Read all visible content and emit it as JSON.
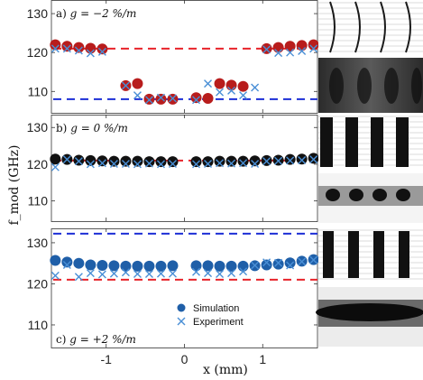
{
  "chart_data": {
    "type": "scatter",
    "ylabel": "f_mod (GHz)",
    "xlabel": "x (mm)",
    "xlim": [
      -1.7,
      1.7
    ],
    "xticks": [
      -1,
      0,
      1
    ],
    "xtick_labels": [
      "-1",
      "0",
      "1"
    ],
    "legend": {
      "placement": "bottom-center of panel c",
      "entries": [
        {
          "label": "Simulation",
          "marker": "circle"
        },
        {
          "label": "Experiment",
          "marker": "x"
        }
      ]
    },
    "panels": [
      {
        "label_prefix": "a)",
        "label_eq": "g = −2 %/m",
        "ylim": [
          104.5,
          133.5
        ],
        "yticks": [
          110,
          120,
          130
        ],
        "marker_color": "#b81c1c",
        "reference_lines": [
          {
            "value": 121,
            "color": "#e8232a"
          },
          {
            "value": 108,
            "color": "#1d2fd6"
          }
        ],
        "simulation": {
          "x": [
            -1.65,
            -1.5,
            -1.35,
            -1.2,
            -1.05,
            -0.75,
            -0.6,
            -0.45,
            -0.3,
            -0.15,
            0.15,
            0.3,
            0.45,
            0.6,
            0.75,
            1.05,
            1.2,
            1.35,
            1.5,
            1.65
          ],
          "y": [
            122,
            121.6,
            121.3,
            121.1,
            120.9,
            111.5,
            112,
            108,
            108,
            108,
            108.4,
            108.2,
            112,
            111.6,
            111.3,
            121,
            121.3,
            121.6,
            121.8,
            122
          ]
        },
        "experiment": {
          "x": [
            -1.65,
            -1.5,
            -1.35,
            -1.2,
            -1.05,
            -0.75,
            -0.6,
            -0.45,
            -0.3,
            -0.15,
            0.15,
            0.3,
            0.45,
            0.6,
            0.75,
            0.9,
            1.05,
            1.2,
            1.35,
            1.5,
            1.65
          ],
          "y": [
            121,
            121,
            120.5,
            119.8,
            120.2,
            111.5,
            109,
            107.8,
            108.4,
            108.2,
            107.8,
            112,
            109.8,
            110.2,
            109,
            111,
            120.8,
            119.9,
            120,
            120.4,
            121
          ]
        }
      },
      {
        "label_prefix": "b)",
        "label_eq": "g = 0 %/m",
        "ylim": [
          104.5,
          133.5
        ],
        "yticks": [
          110,
          120,
          130
        ],
        "marker_color": "#111111",
        "reference_lines": [
          {
            "value": 121,
            "color": "#e8232a"
          }
        ],
        "simulation": {
          "x": [
            -1.65,
            -1.5,
            -1.35,
            -1.2,
            -1.05,
            -0.9,
            -0.75,
            -0.6,
            -0.45,
            -0.3,
            -0.15,
            0.15,
            0.3,
            0.45,
            0.6,
            0.75,
            0.9,
            1.05,
            1.2,
            1.35,
            1.5,
            1.65
          ],
          "y": [
            121.4,
            121.3,
            121.1,
            121,
            120.9,
            120.8,
            120.8,
            120.8,
            120.7,
            120.7,
            120.7,
            120.7,
            120.7,
            120.8,
            120.8,
            120.8,
            120.9,
            121,
            121.1,
            121.3,
            121.4,
            121.6
          ]
        },
        "experiment": {
          "x": [
            -1.65,
            -1.5,
            -1.35,
            -1.2,
            -1.05,
            -0.9,
            -0.75,
            -0.6,
            -0.45,
            -0.3,
            -0.15,
            0.15,
            0.3,
            0.45,
            0.6,
            0.75,
            0.9,
            1.05,
            1.2,
            1.35,
            1.5,
            1.65
          ],
          "y": [
            119.2,
            121.3,
            120.8,
            120,
            120.3,
            120.1,
            120.1,
            120,
            120.2,
            120,
            120.1,
            120,
            120.1,
            120.3,
            120.2,
            120.3,
            120.1,
            120.8,
            120.9,
            121,
            121.1,
            121.3
          ]
        }
      },
      {
        "label_prefix": "c)",
        "label_eq": "g = +2 %/m",
        "ylim": [
          104.5,
          133.5
        ],
        "yticks": [
          110,
          120,
          130
        ],
        "marker_color": "#1f5fa8",
        "reference_lines": [
          {
            "value": 132.2,
            "color": "#1d2fd6"
          },
          {
            "value": 121,
            "color": "#e8232a"
          }
        ],
        "simulation": {
          "x": [
            -1.65,
            -1.5,
            -1.35,
            -1.2,
            -1.05,
            -0.9,
            -0.75,
            -0.6,
            -0.45,
            -0.3,
            -0.15,
            0.15,
            0.3,
            0.45,
            0.6,
            0.75,
            0.9,
            1.05,
            1.2,
            1.35,
            1.5,
            1.65
          ],
          "y": [
            125.7,
            125.3,
            125,
            124.6,
            124.5,
            124.4,
            124.3,
            124.3,
            124.3,
            124.3,
            124.4,
            124.4,
            124.4,
            124.3,
            124.3,
            124.3,
            124.4,
            124.6,
            124.8,
            125.1,
            125.5,
            125.9
          ]
        },
        "experiment": {
          "x": [
            -1.65,
            -1.5,
            -1.35,
            -1.2,
            -1.05,
            -0.9,
            -0.75,
            -0.6,
            -0.45,
            -0.3,
            -0.15,
            0.15,
            0.3,
            0.45,
            0.6,
            0.75,
            0.9,
            1.05,
            1.2,
            1.35,
            1.5,
            1.65
          ],
          "y": [
            122,
            124.6,
            121.7,
            122.6,
            122.3,
            122.5,
            122.8,
            122.4,
            122.4,
            122.5,
            122.5,
            122.9,
            122.6,
            122.4,
            122.6,
            123,
            124.5,
            125.2,
            125.1,
            124.5,
            125.4,
            125.8
          ]
        }
      }
    ]
  }
}
